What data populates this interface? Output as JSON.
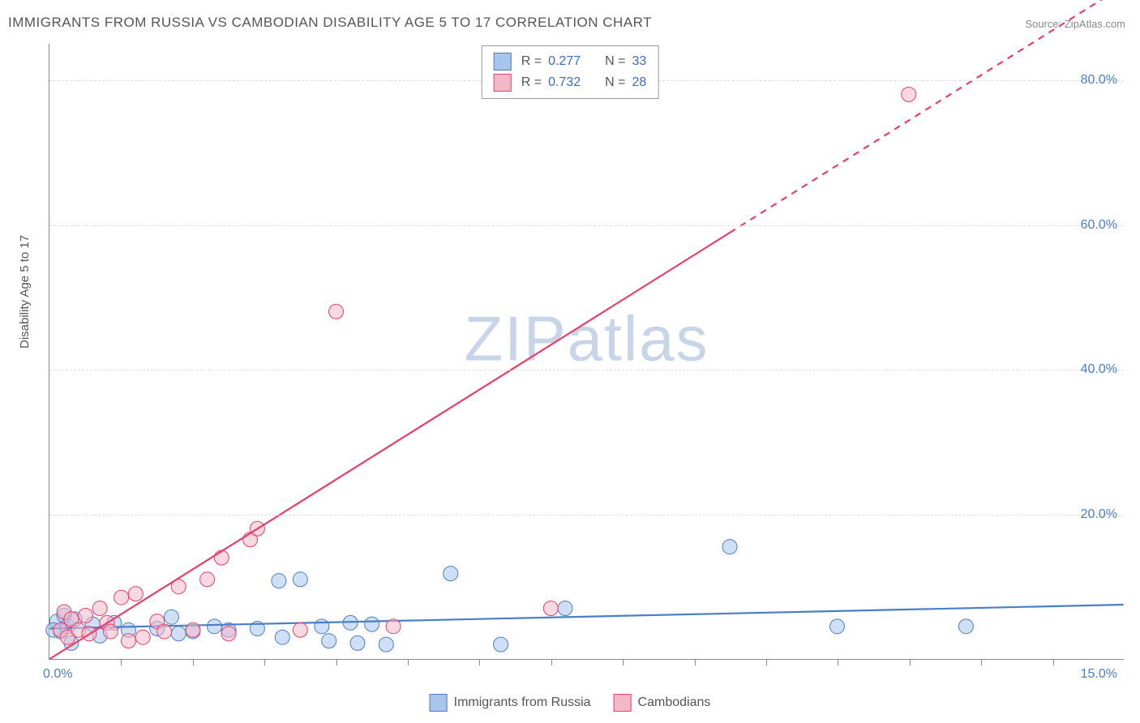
{
  "title": "IMMIGRANTS FROM RUSSIA VS CAMBODIAN DISABILITY AGE 5 TO 17 CORRELATION CHART",
  "source_label": "Source:",
  "source_value": "ZipAtlas.com",
  "watermark": "ZIPatlas",
  "y_axis_title": "Disability Age 5 to 17",
  "chart": {
    "type": "scatter",
    "xlim": [
      0,
      15
    ],
    "ylim": [
      0,
      85
    ],
    "x_tick_step": 1,
    "y_ticks": [
      20,
      40,
      60,
      80
    ],
    "y_tick_labels": [
      "20.0%",
      "40.0%",
      "60.0%",
      "80.0%"
    ],
    "x_label_min": "0.0%",
    "x_label_max": "15.0%",
    "background_color": "#ffffff",
    "grid_color": "#dddddd",
    "axis_color": "#888888",
    "series": [
      {
        "name": "Immigrants from Russia",
        "color_fill": "#a8c5ec",
        "color_stroke": "#4a7ec7",
        "marker_radius": 9,
        "fill_opacity": 0.55,
        "R": "0.277",
        "N": "33",
        "trend": {
          "x1": 0,
          "y1": 4.2,
          "x2": 15,
          "y2": 7.5,
          "dash_from_x": 15
        },
        "points": [
          [
            0.1,
            5.2
          ],
          [
            0.15,
            3.8
          ],
          [
            0.2,
            6.0
          ],
          [
            0.25,
            4.5
          ],
          [
            0.3,
            2.2
          ],
          [
            0.35,
            5.5
          ],
          [
            0.6,
            4.8
          ],
          [
            0.7,
            3.2
          ],
          [
            0.9,
            5.0
          ],
          [
            1.1,
            4.0
          ],
          [
            1.5,
            4.2
          ],
          [
            1.7,
            5.8
          ],
          [
            1.8,
            3.5
          ],
          [
            2.0,
            3.8
          ],
          [
            2.3,
            4.5
          ],
          [
            2.5,
            4.0
          ],
          [
            2.9,
            4.2
          ],
          [
            3.2,
            10.8
          ],
          [
            3.25,
            3.0
          ],
          [
            3.5,
            11.0
          ],
          [
            3.8,
            4.5
          ],
          [
            3.9,
            2.5
          ],
          [
            4.2,
            5.0
          ],
          [
            4.3,
            2.2
          ],
          [
            4.5,
            4.8
          ],
          [
            4.7,
            2.0
          ],
          [
            5.6,
            11.8
          ],
          [
            6.3,
            2.0
          ],
          [
            7.2,
            7.0
          ],
          [
            9.5,
            15.5
          ],
          [
            11.0,
            4.5
          ],
          [
            12.8,
            4.5
          ],
          [
            0.05,
            4.0
          ]
        ]
      },
      {
        "name": "Cambodians",
        "color_fill": "#f2b9c9",
        "color_stroke": "#e83e6b",
        "marker_radius": 9,
        "fill_opacity": 0.55,
        "R": "0.732",
        "N": "28",
        "trend": {
          "x1": 0,
          "y1": 0,
          "x2": 15,
          "y2": 93,
          "dash_from_x": 9.5
        },
        "points": [
          [
            0.15,
            4.0
          ],
          [
            0.2,
            6.5
          ],
          [
            0.25,
            3.0
          ],
          [
            0.3,
            5.5
          ],
          [
            0.4,
            4.0
          ],
          [
            0.5,
            6.0
          ],
          [
            0.55,
            3.5
          ],
          [
            0.7,
            7.0
          ],
          [
            0.8,
            5.0
          ],
          [
            0.85,
            3.8
          ],
          [
            1.0,
            8.5
          ],
          [
            1.1,
            2.5
          ],
          [
            1.2,
            9.0
          ],
          [
            1.3,
            3.0
          ],
          [
            1.5,
            5.2
          ],
          [
            1.6,
            3.8
          ],
          [
            1.8,
            10.0
          ],
          [
            2.0,
            4.0
          ],
          [
            2.2,
            11.0
          ],
          [
            2.4,
            14.0
          ],
          [
            2.5,
            3.5
          ],
          [
            2.8,
            16.5
          ],
          [
            2.9,
            18.0
          ],
          [
            3.5,
            4.0
          ],
          [
            4.0,
            48.0
          ],
          [
            4.8,
            4.5
          ],
          [
            7.0,
            7.0
          ],
          [
            12.0,
            78.0
          ]
        ]
      }
    ]
  },
  "legend_top": {
    "r_label": "R =",
    "n_label": "N ="
  },
  "legend_bottom": {
    "items": [
      "Immigrants from Russia",
      "Cambodians"
    ]
  }
}
